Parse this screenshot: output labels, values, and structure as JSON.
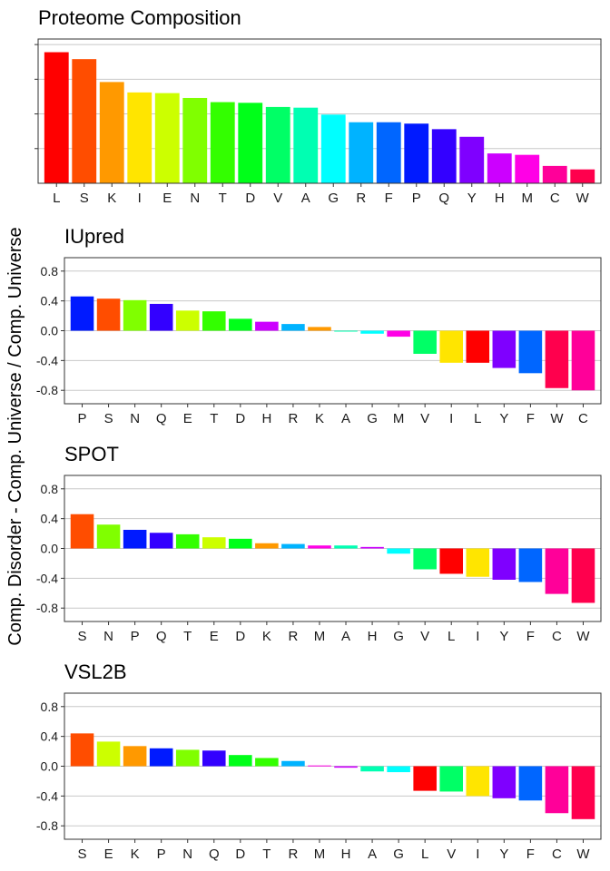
{
  "figure": {
    "ylabel": "Comp. Disorder - Comp. Universe / Comp. Universe"
  },
  "colors": {
    "L": "#ff0000",
    "S": "#ff4d00",
    "K": "#ff9900",
    "I": "#ffe500",
    "E": "#ccff00",
    "N": "#80ff00",
    "T": "#33ff00",
    "D": "#00ff19",
    "V": "#00ff66",
    "A": "#00ffb2",
    "G": "#00ffff",
    "R": "#00b3ff",
    "F": "#0066ff",
    "P": "#001aff",
    "Q": "#3300ff",
    "Y": "#7f00ff",
    "H": "#cc00ff",
    "M": "#ff00e6",
    "C": "#ff0099",
    "W": "#ff004d"
  },
  "chart_data": [
    {
      "type": "bar",
      "title": "Proteome Composition",
      "categories": [
        "L",
        "S",
        "K",
        "I",
        "E",
        "N",
        "T",
        "D",
        "V",
        "A",
        "G",
        "R",
        "F",
        "P",
        "Q",
        "Y",
        "H",
        "M",
        "C",
        "W"
      ],
      "values": [
        0.0945,
        0.0895,
        0.073,
        0.0655,
        0.065,
        0.0615,
        0.0585,
        0.058,
        0.055,
        0.0545,
        0.0495,
        0.044,
        0.044,
        0.043,
        0.039,
        0.0335,
        0.0215,
        0.0205,
        0.0125,
        0.01
      ],
      "ylim": [
        0,
        0.104
      ],
      "yticks": [
        0.025,
        0.05,
        0.075,
        0.1
      ],
      "ytick_labels_shown": false,
      "grid": true
    },
    {
      "type": "bar",
      "title": "IUpred",
      "categories": [
        "P",
        "S",
        "N",
        "Q",
        "E",
        "T",
        "D",
        "H",
        "R",
        "K",
        "A",
        "G",
        "M",
        "V",
        "I",
        "L",
        "Y",
        "F",
        "W",
        "C"
      ],
      "values": [
        0.46,
        0.43,
        0.41,
        0.36,
        0.27,
        0.26,
        0.16,
        0.12,
        0.09,
        0.05,
        -0.01,
        -0.04,
        -0.08,
        -0.31,
        -0.43,
        -0.43,
        -0.5,
        -0.57,
        -0.77,
        -0.8
      ],
      "ylim": [
        -0.98,
        0.98
      ],
      "yticks": [
        -0.8,
        -0.4,
        0.0,
        0.4,
        0.8
      ],
      "ytick_labels": [
        "-0.8",
        "-0.4",
        "0.0",
        "0.4",
        "0.8"
      ],
      "grid": true
    },
    {
      "type": "bar",
      "title": "SPOT",
      "categories": [
        "S",
        "N",
        "P",
        "Q",
        "T",
        "E",
        "D",
        "K",
        "R",
        "M",
        "A",
        "H",
        "G",
        "V",
        "L",
        "I",
        "Y",
        "F",
        "C",
        "W"
      ],
      "values": [
        0.46,
        0.32,
        0.25,
        0.21,
        0.19,
        0.15,
        0.13,
        0.07,
        0.06,
        0.04,
        0.04,
        0.02,
        -0.07,
        -0.28,
        -0.34,
        -0.38,
        -0.42,
        -0.45,
        -0.61,
        -0.73
      ],
      "ylim": [
        -0.98,
        0.98
      ],
      "yticks": [
        -0.8,
        -0.4,
        0.0,
        0.4,
        0.8
      ],
      "ytick_labels": [
        "-0.8",
        "-0.4",
        "0.0",
        "0.4",
        "0.8"
      ],
      "grid": true
    },
    {
      "type": "bar",
      "title": "VSL2B",
      "categories": [
        "S",
        "E",
        "K",
        "P",
        "N",
        "Q",
        "D",
        "T",
        "R",
        "M",
        "H",
        "A",
        "G",
        "L",
        "V",
        "I",
        "Y",
        "F",
        "C",
        "W"
      ],
      "values": [
        0.44,
        0.33,
        0.27,
        0.24,
        0.22,
        0.21,
        0.15,
        0.11,
        0.07,
        0.01,
        -0.02,
        -0.07,
        -0.08,
        -0.33,
        -0.34,
        -0.4,
        -0.43,
        -0.46,
        -0.63,
        -0.71
      ],
      "ylim": [
        -0.98,
        0.98
      ],
      "yticks": [
        -0.8,
        -0.4,
        0.0,
        0.4,
        0.8
      ],
      "ytick_labels": [
        "-0.8",
        "-0.4",
        "0.0",
        "0.4",
        "0.8"
      ],
      "grid": true
    }
  ]
}
